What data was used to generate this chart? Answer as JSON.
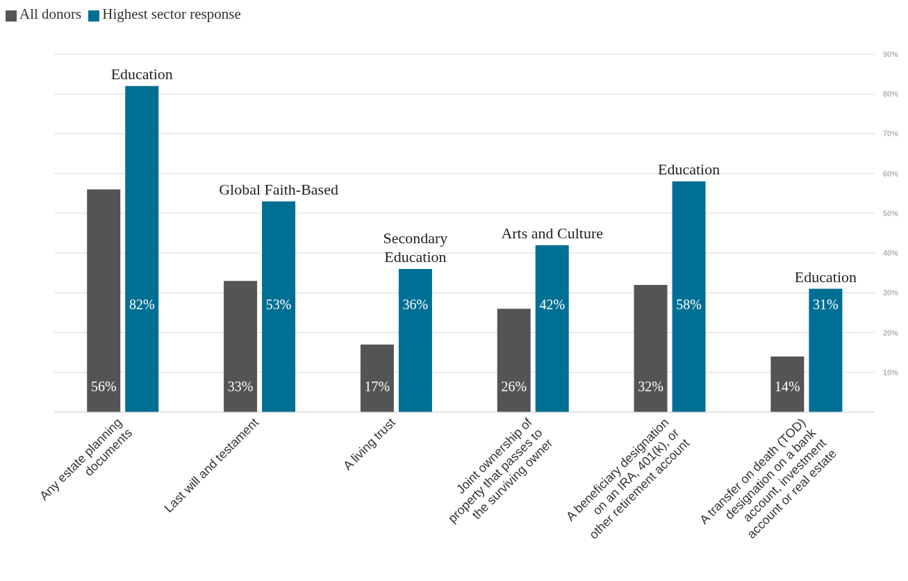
{
  "chart_data": {
    "type": "bar",
    "categories": [
      "Any estate planning documents",
      "Last will and testament",
      "A living trust",
      "Joint ownership of property that passes to the surviving owner",
      "A beneficiary designation on an IRA, 401(k), or other retirement account",
      "A transfer on death (TOD) designation on a bank account, investment account or real estate"
    ],
    "series": [
      {
        "name": "All donors",
        "color": "#545456",
        "values": [
          56,
          33,
          17,
          26,
          32,
          14
        ],
        "value_labels": [
          "56%",
          "33%",
          "17%",
          "26%",
          "32%",
          "14%"
        ]
      },
      {
        "name": "Highest sector response",
        "color": "#006f94",
        "values": [
          82,
          53,
          36,
          42,
          58,
          31
        ],
        "value_labels": [
          "82%",
          "53%",
          "36%",
          "42%",
          "58%",
          "31%"
        ]
      }
    ],
    "annotations": [
      "Education",
      "Global Faith-Based",
      "Secondary Education",
      "Arts and Culture",
      "Education",
      "Education"
    ],
    "ylim": [
      0,
      90
    ],
    "yticks": [
      {
        "value": 10,
        "label": "10%"
      },
      {
        "value": 20,
        "label": "20%"
      },
      {
        "value": 30,
        "label": "30%"
      },
      {
        "value": 40,
        "label": "40%"
      },
      {
        "value": 50,
        "label": "50%"
      },
      {
        "value": 60,
        "label": "60%"
      },
      {
        "value": 70,
        "label": "70%"
      },
      {
        "value": 80,
        "label": "80%"
      },
      {
        "value": 90,
        "label": "90%"
      }
    ],
    "grid": "y",
    "legend": "top left"
  }
}
